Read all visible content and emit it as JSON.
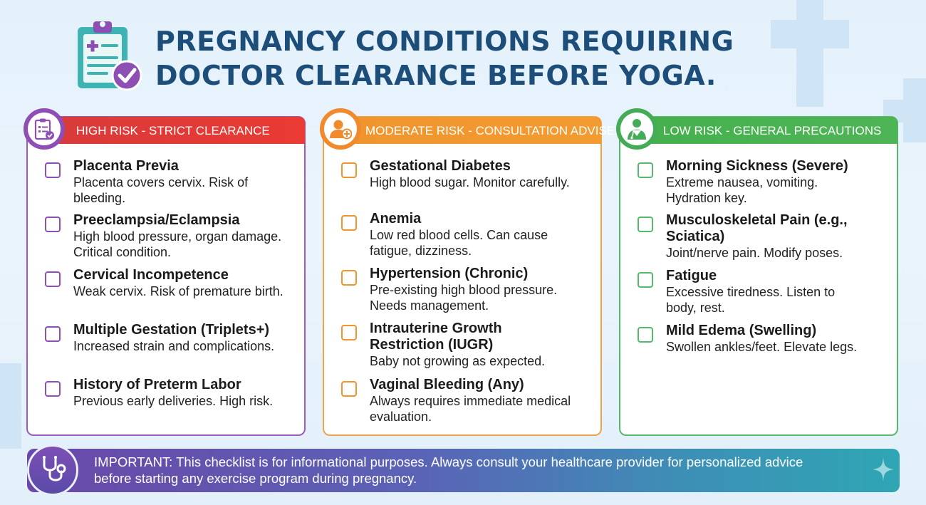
{
  "title": {
    "line1": "PREGNANCY CONDITIONS REQUIRING",
    "line2": "DOCTOR CLEARANCE BEFORE YOGA."
  },
  "icons": {
    "header": "clipboard-check-icon",
    "high": "clipboard-list-icon",
    "moderate": "person-add-icon",
    "low": "doctor-icon",
    "footer": "stethoscope-icon",
    "corner": "sparkle-icon"
  },
  "colors": {
    "title": "#1d4e7a",
    "high_accent": "#8e4fb5",
    "high_banner": "#e23a36",
    "moderate_accent": "#f0952e",
    "low_accent": "#4eb556"
  },
  "columns": [
    {
      "heading": "HIGH RISK - STRICT CLEARANCE",
      "items": [
        {
          "title": "Placenta Previa",
          "desc": [
            "Placenta covers cervix. Risk of",
            "bleeding."
          ]
        },
        {
          "title": "Preeclampsia/Eclampsia",
          "desc": [
            "High blood pressure, organ damage.",
            "Critical condition."
          ]
        },
        {
          "title": "Cervical Incompetence",
          "desc": [
            "Weak cervix. Risk of premature birth."
          ]
        },
        {
          "title": "Multiple Gestation (Triplets+)",
          "desc": [
            "Increased strain and complications."
          ]
        },
        {
          "title": "History of Preterm Labor",
          "desc": [
            "Previous early deliveries. High risk."
          ]
        }
      ]
    },
    {
      "heading": "MODERATE RISK - CONSULTATION ADVISED",
      "items": [
        {
          "title": "Gestational Diabetes",
          "desc": [
            "High blood sugar. Monitor carefully."
          ]
        },
        {
          "title": "Anemia",
          "desc": [
            "Low red blood cells. Can cause",
            "fatigue, dizziness."
          ]
        },
        {
          "title": "Hypertension (Chronic)",
          "desc": [
            "Pre-existing high blood pressure.",
            "Needs management."
          ]
        },
        {
          "title": [
            "Intrauterine Growth",
            "Restriction (IUGR)"
          ],
          "desc": [
            "Baby not growing as expected."
          ]
        },
        {
          "title": "Vaginal Bleeding (Any)",
          "desc": [
            "Always requires immediate medical",
            "evaluation."
          ]
        }
      ]
    },
    {
      "heading": "LOW RISK - GENERAL PRECAUTIONS",
      "items": [
        {
          "title": "Morning Sickness (Severe)",
          "desc": [
            "Extreme nausea, vomiting.",
            "Hydration key."
          ]
        },
        {
          "title": [
            "Musculoskeletal Pain (e.g.,",
            "Sciatica)"
          ],
          "desc": [
            "Joint/nerve pain. Modify poses."
          ]
        },
        {
          "title": "Fatigue",
          "desc": [
            "Excessive tiredness. Listen to",
            "body, rest."
          ]
        },
        {
          "title": "Mild Edema (Swelling)",
          "desc": [
            "Swollen ankles/feet. Elevate legs."
          ]
        }
      ]
    }
  ],
  "footer": {
    "line1": "IMPORTANT: This checklist is for informational purposes. Always consult your healthcare provider for personalized advice",
    "line2": "before starting any exercise program during pregnancy."
  }
}
